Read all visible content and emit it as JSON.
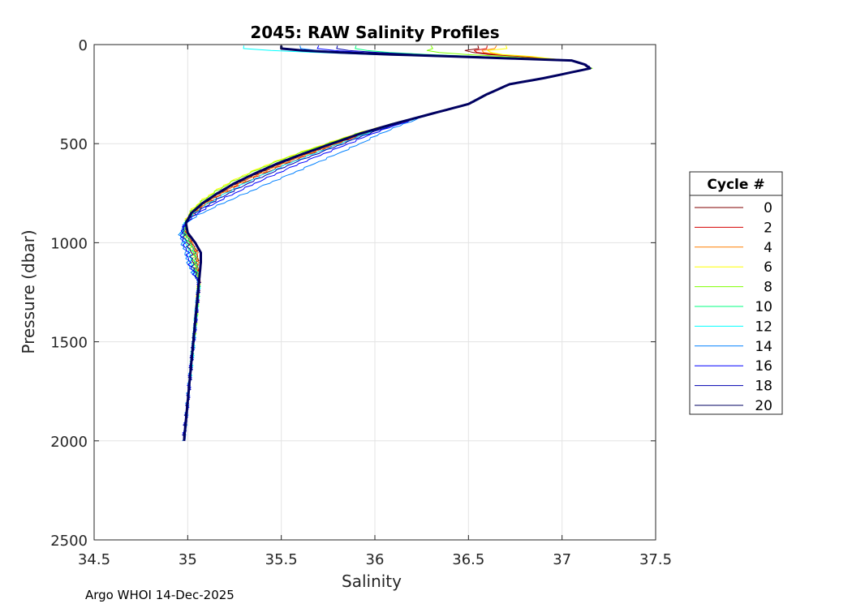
{
  "chart_data": {
    "type": "line",
    "title": "2045: RAW Salinity Profiles",
    "xlabel": "Salinity",
    "ylabel": "Pressure (dbar)",
    "xlim": [
      34.5,
      37.5
    ],
    "ylim": [
      0,
      2500
    ],
    "y_reversed": true,
    "grid": true,
    "xticks": [
      34.5,
      35,
      35.5,
      36,
      36.5,
      37,
      37.5
    ],
    "xtick_labels": [
      "34.5",
      "35",
      "35.5",
      "36",
      "36.5",
      "37",
      "37.5"
    ],
    "yticks": [
      0,
      500,
      1000,
      1500,
      2000,
      2500
    ],
    "ytick_labels": [
      "0",
      "500",
      "1000",
      "1500",
      "2000",
      "2500"
    ],
    "legend": {
      "title": "Cycle #",
      "placement": "outside-right",
      "entries": [
        {
          "label": "0",
          "color": "#800000"
        },
        {
          "label": "2",
          "color": "#d40000"
        },
        {
          "label": "4",
          "color": "#ff7f00"
        },
        {
          "label": "6",
          "color": "#ffff00"
        },
        {
          "label": "8",
          "color": "#7fff00"
        },
        {
          "label": "10",
          "color": "#00ff80"
        },
        {
          "label": "12",
          "color": "#00ffff"
        },
        {
          "label": "14",
          "color": "#0080ff"
        },
        {
          "label": "16",
          "color": "#0000ff"
        },
        {
          "label": "18",
          "color": "#0000b0"
        },
        {
          "label": "20",
          "color": "#000060"
        }
      ]
    },
    "base_profile": {
      "pressure": [
        5,
        20,
        40,
        60,
        80,
        100,
        120,
        140,
        170,
        200,
        250,
        300,
        350,
        400,
        450,
        500,
        550,
        600,
        650,
        700,
        750,
        800,
        850,
        900,
        950,
        1000,
        1050,
        1100,
        1200,
        1300,
        1400,
        1500,
        1600,
        1700,
        1800,
        1900,
        2000
      ],
      "salinity": [
        35.55,
        35.9,
        36.45,
        36.9,
        37.05,
        37.12,
        37.15,
        37.05,
        36.9,
        36.72,
        36.6,
        36.5,
        36.3,
        36.1,
        35.92,
        35.77,
        35.62,
        35.48,
        35.36,
        35.25,
        35.16,
        35.08,
        35.02,
        34.99,
        35.0,
        35.04,
        35.07,
        35.07,
        35.06,
        35.05,
        35.04,
        35.03,
        35.02,
        35.01,
        35.0,
        34.99,
        34.98
      ]
    },
    "series": [
      {
        "name": "0",
        "color": "#800000",
        "surface_salinity": 36.55,
        "mid_offset": 0.02,
        "deep_offset": -0.02,
        "max_pressure": 1300
      },
      {
        "name": "2",
        "color": "#d40000",
        "surface_salinity": 36.6,
        "mid_offset": 0.05,
        "deep_offset": -0.03,
        "max_pressure": 1300
      },
      {
        "name": "4",
        "color": "#ff7f00",
        "surface_salinity": 36.65,
        "mid_offset": 0.03,
        "deep_offset": -0.02,
        "max_pressure": 1300
      },
      {
        "name": "6",
        "color": "#ffff00",
        "surface_salinity": 36.7,
        "mid_offset": -0.04,
        "deep_offset": -0.05,
        "max_pressure": 1400
      },
      {
        "name": "8",
        "color": "#7fff00",
        "surface_salinity": 36.3,
        "mid_offset": -0.03,
        "deep_offset": -0.04,
        "max_pressure": 1500
      },
      {
        "name": "10",
        "color": "#00ff80",
        "surface_salinity": 35.9,
        "mid_offset": 0.0,
        "deep_offset": -0.03,
        "max_pressure": 1600
      },
      {
        "name": "12",
        "color": "#00ffff",
        "surface_salinity": 35.3,
        "mid_offset": 0.06,
        "deep_offset": -0.06,
        "max_pressure": 1700
      },
      {
        "name": "14",
        "color": "#0080ff",
        "surface_salinity": 35.6,
        "mid_offset": 0.2,
        "deep_offset": -0.08,
        "max_pressure": 2000
      },
      {
        "name": "16",
        "color": "#0000ff",
        "surface_salinity": 35.7,
        "mid_offset": 0.12,
        "deep_offset": -0.07,
        "max_pressure": 2000
      },
      {
        "name": "18",
        "color": "#0000b0",
        "surface_salinity": 35.8,
        "mid_offset": 0.08,
        "deep_offset": -0.05,
        "max_pressure": 2000
      },
      {
        "name": "20",
        "color": "#000060",
        "surface_salinity": 35.5,
        "mid_offset": 0.0,
        "deep_offset": 0.0,
        "max_pressure": 2000,
        "highlight": true
      }
    ]
  },
  "footer": "Argo WHOI 14-Dec-2025"
}
